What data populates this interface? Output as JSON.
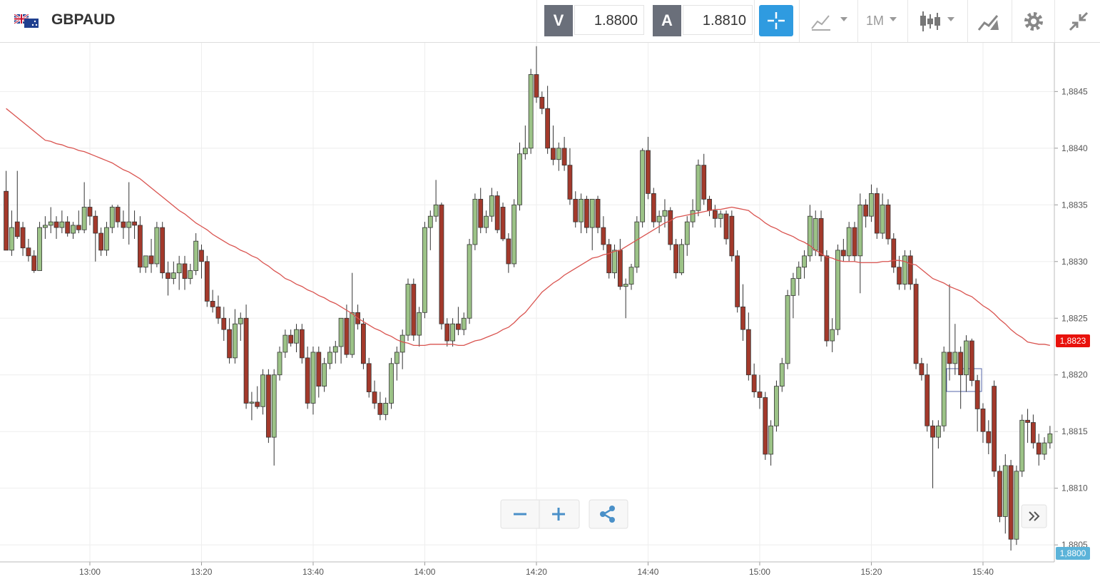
{
  "header": {
    "symbol": "GBPAUD",
    "sell_label": "V",
    "sell_price": "1.8800",
    "buy_label": "A",
    "buy_price": "1.8810",
    "timeframe": "1M"
  },
  "chart_data": {
    "type": "candlestick",
    "categories": [
      null,
      null,
      null,
      null,
      null,
      null,
      null,
      null,
      null,
      null,
      null,
      null,
      null,
      null,
      null,
      "13:00",
      null,
      null,
      null,
      null,
      null,
      null,
      null,
      null,
      null,
      null,
      null,
      null,
      null,
      null,
      null,
      null,
      null,
      null,
      null,
      "13:20",
      null,
      null,
      null,
      null,
      null,
      null,
      null,
      null,
      null,
      null,
      null,
      null,
      null,
      null,
      null,
      null,
      null,
      null,
      null,
      "13:40",
      null,
      null,
      null,
      null,
      null,
      null,
      null,
      null,
      null,
      null,
      null,
      null,
      null,
      null,
      null,
      null,
      null,
      null,
      null,
      "14:00",
      null,
      null,
      null,
      null,
      null,
      null,
      null,
      null,
      null,
      null,
      null,
      null,
      null,
      null,
      null,
      null,
      null,
      null,
      null,
      "14:20",
      null,
      null,
      null,
      null,
      null,
      null,
      null,
      null,
      null,
      null,
      null,
      null,
      null,
      null,
      null,
      null,
      null,
      null,
      null,
      "14:40",
      null,
      null,
      null,
      null,
      null,
      null,
      null,
      null,
      null,
      null,
      null,
      null,
      null,
      null,
      null,
      null,
      null,
      null,
      null,
      "15:00",
      null,
      null,
      null,
      null,
      null,
      null,
      null,
      null,
      null,
      null,
      null,
      null,
      null,
      null,
      null,
      null,
      null,
      null,
      null,
      "15:20",
      null,
      null,
      null,
      null,
      null,
      null,
      null,
      null,
      null,
      null,
      null,
      null,
      null,
      null,
      null,
      null,
      null,
      null,
      null,
      "15:40",
      null,
      null,
      null,
      null,
      null,
      null,
      null,
      null,
      null,
      null,
      null,
      null
    ],
    "open": [
      1.88362,
      1.8831,
      1.88335,
      1.8833,
      1.88312,
      1.88305,
      1.88292,
      1.8833,
      1.88332,
      1.88335,
      1.8833,
      1.88335,
      1.88325,
      1.88332,
      1.88328,
      1.88348,
      1.8834,
      1.88325,
      1.8831,
      1.8833,
      1.88348,
      1.88335,
      1.8833,
      1.88335,
      1.88332,
      1.88295,
      1.88305,
      1.88298,
      1.8833,
      1.8829,
      1.88285,
      1.8829,
      1.88298,
      1.88285,
      1.88292,
      1.8831,
      1.883,
      1.88265,
      1.8826,
      1.8825,
      1.8824,
      1.88215,
      1.88245,
      1.8825,
      1.88175,
      1.88176,
      1.88172,
      1.882,
      1.88145,
      1.882,
      1.8822,
      1.88235,
      1.88228,
      1.8824,
      1.88215,
      1.88175,
      1.8822,
      1.8819,
      1.8821,
      1.8822,
      1.88225,
      1.8825,
      1.88218,
      1.88255,
      1.88245,
      1.8821,
      1.88185,
      1.88175,
      1.88165,
      1.88175,
      1.8821,
      1.8822,
      1.88235,
      1.8828,
      1.88235,
      1.88255,
      1.8833,
      1.8834,
      1.8835,
      1.88245,
      1.8823,
      1.88245,
      1.8824,
      1.8825,
      1.88315,
      1.88355,
      1.8833,
      1.8834,
      1.88358,
      1.88348,
      1.8832,
      1.88298,
      1.8835,
      1.88395,
      1.884,
      1.88465,
      1.88445,
      1.88435,
      1.884,
      1.8839,
      1.884,
      1.88385,
      1.88355,
      1.88335,
      1.88355,
      1.8833,
      1.88355,
      1.8833,
      1.88315,
      1.8829,
      1.8831,
      1.88278,
      1.8828,
      1.88295,
      1.88335,
      1.88398,
      1.8836,
      1.88335,
      1.8834,
      1.88345,
      1.88315,
      1.8829,
      1.88315,
      1.88335,
      1.88345,
      1.88385,
      1.88355,
      1.88345,
      1.88338,
      1.88342,
      1.8834,
      1.88305,
      1.8826,
      1.8824,
      1.882,
      1.88185,
      1.8818,
      1.8813,
      1.88155,
      1.8819,
      1.8821,
      1.8827,
      1.88285,
      1.88295,
      1.88305,
      1.8831,
      1.88338,
      1.88305,
      1.8823,
      1.8824,
      1.8831,
      1.88305,
      1.8833,
      1.88305,
      1.8835,
      1.8834,
      1.8836,
      1.88325,
      1.8835,
      1.8832,
      1.88295,
      1.8828,
      1.88305,
      1.8828,
      1.8821,
      1.882,
      1.88155,
      1.88145,
      1.88155,
      1.8822,
      1.8821,
      1.8822,
      1.882,
      1.8823,
      1.88195,
      1.8817,
      1.8815,
      1.8819,
      1.88115,
      1.88075,
      1.8812,
      1.88055,
      1.88115,
      1.8816,
      1.88158,
      1.8814,
      1.8813,
      1.8814
    ],
    "high": [
      1.8838,
      1.88345,
      1.8838,
      1.88335,
      1.8832,
      1.8831,
      1.88335,
      1.8834,
      1.88348,
      1.8834,
      1.88345,
      1.8834,
      1.88335,
      1.88345,
      1.8837,
      1.88355,
      1.88345,
      1.8833,
      1.88335,
      1.8835,
      1.8835,
      1.88345,
      1.8837,
      1.88345,
      1.8834,
      1.88305,
      1.8832,
      1.88335,
      1.88335,
      1.883,
      1.883,
      1.88305,
      1.88305,
      1.88298,
      1.88325,
      1.88315,
      1.88305,
      1.88275,
      1.8827,
      1.8826,
      1.8825,
      1.88258,
      1.88255,
      1.88262,
      1.88185,
      1.8819,
      1.88205,
      1.88205,
      1.88205,
      1.88225,
      1.8824,
      1.8824,
      1.88245,
      1.88245,
      1.88225,
      1.88225,
      1.88225,
      1.88215,
      1.88225,
      1.8823,
      1.8825,
      1.88262,
      1.8829,
      1.88262,
      1.8825,
      1.88215,
      1.88195,
      1.88185,
      1.8818,
      1.88215,
      1.88225,
      1.8824,
      1.88285,
      1.88285,
      1.8826,
      1.88335,
      1.88345,
      1.88372,
      1.88352,
      1.8825,
      1.8825,
      1.8826,
      1.88255,
      1.8832,
      1.8836,
      1.88365,
      1.88345,
      1.88365,
      1.88362,
      1.88352,
      1.88325,
      1.88355,
      1.88405,
      1.8842,
      1.8847,
      1.8849,
      1.8845,
      1.88455,
      1.8842,
      1.88405,
      1.8841,
      1.884,
      1.88362,
      1.8836,
      1.88358,
      1.88355,
      1.88358,
      1.8834,
      1.8832,
      1.88315,
      1.8832,
      1.88285,
      1.88298,
      1.8834,
      1.884,
      1.8841,
      1.88365,
      1.88345,
      1.88355,
      1.88348,
      1.8832,
      1.8832,
      1.8834,
      1.88355,
      1.8839,
      1.88395,
      1.88358,
      1.8835,
      1.88345,
      1.88345,
      1.88345,
      1.8831,
      1.8828,
      1.88255,
      1.8821,
      1.882,
      1.88185,
      1.8816,
      1.88195,
      1.88215,
      1.88275,
      1.8829,
      1.883,
      1.8831,
      1.8835,
      1.88345,
      1.88345,
      1.8831,
      1.8825,
      1.88315,
      1.8832,
      1.88335,
      1.88335,
      1.8836,
      1.88355,
      1.88368,
      1.88365,
      1.8836,
      1.88355,
      1.88325,
      1.88305,
      1.8831,
      1.8831,
      1.88285,
      1.88215,
      1.8821,
      1.8816,
      1.8816,
      1.88225,
      1.8828,
      1.88245,
      1.88225,
      1.88235,
      1.88232,
      1.882,
      1.88175,
      1.8816,
      1.88195,
      1.8812,
      1.8813,
      1.88125,
      1.8812,
      1.88165,
      1.8817,
      1.88165,
      1.88148,
      1.88145,
      1.88155
    ],
    "low": [
      1.8831,
      1.88305,
      1.8832,
      1.88305,
      1.883,
      1.8829,
      1.88292,
      1.8832,
      1.88325,
      1.8832,
      1.88325,
      1.88322,
      1.8832,
      1.88325,
      1.88325,
      1.88332,
      1.883,
      1.88305,
      1.88305,
      1.88325,
      1.8833,
      1.8832,
      1.88315,
      1.8832,
      1.8829,
      1.8829,
      1.8829,
      1.88295,
      1.88285,
      1.8827,
      1.8828,
      1.88275,
      1.88275,
      1.8828,
      1.88288,
      1.88285,
      1.8826,
      1.88255,
      1.88245,
      1.8823,
      1.8821,
      1.8821,
      1.8823,
      1.8817,
      1.8816,
      1.8817,
      1.88165,
      1.8814,
      1.8812,
      1.88195,
      1.88215,
      1.88225,
      1.8822,
      1.8821,
      1.8817,
      1.88165,
      1.8818,
      1.88185,
      1.88205,
      1.8821,
      1.8821,
      1.88215,
      1.88215,
      1.8824,
      1.88205,
      1.8818,
      1.8817,
      1.8816,
      1.8816,
      1.8817,
      1.88195,
      1.88205,
      1.8823,
      1.8823,
      1.88225,
      1.8825,
      1.8831,
      1.88335,
      1.8824,
      1.88225,
      1.88225,
      1.88235,
      1.88235,
      1.88245,
      1.8831,
      1.88325,
      1.88325,
      1.88335,
      1.88325,
      1.88318,
      1.8829,
      1.88295,
      1.88345,
      1.8839,
      1.88395,
      1.8844,
      1.8843,
      1.88395,
      1.88385,
      1.8838,
      1.8838,
      1.8835,
      1.8833,
      1.88325,
      1.88325,
      1.8831,
      1.88325,
      1.8831,
      1.88285,
      1.88285,
      1.88275,
      1.8825,
      1.88275,
      1.8829,
      1.8833,
      1.88355,
      1.8833,
      1.88325,
      1.8833,
      1.8831,
      1.88285,
      1.88288,
      1.88305,
      1.8833,
      1.8834,
      1.8835,
      1.8834,
      1.8833,
      1.8833,
      1.88315,
      1.883,
      1.88255,
      1.8823,
      1.88195,
      1.8818,
      1.8817,
      1.88125,
      1.8812,
      1.8815,
      1.88185,
      1.88205,
      1.8825,
      1.8827,
      1.88285,
      1.883,
      1.88305,
      1.883,
      1.88225,
      1.8822,
      1.88235,
      1.883,
      1.883,
      1.883,
      1.88272,
      1.8833,
      1.88335,
      1.8832,
      1.8832,
      1.88315,
      1.8829,
      1.88275,
      1.88275,
      1.88275,
      1.88205,
      1.88195,
      1.8815,
      1.881,
      1.88135,
      1.8815,
      1.88195,
      1.882,
      1.8817,
      1.88185,
      1.8819,
      1.8815,
      1.8814,
      1.8813,
      1.8811,
      1.8807,
      1.8806,
      1.88045,
      1.8805,
      1.8811,
      1.8814,
      1.88135,
      1.8812,
      1.88125,
      1.88135
    ],
    "close": [
      1.8831,
      1.8833,
      1.88322,
      1.88312,
      1.88305,
      1.88292,
      1.8833,
      1.88332,
      1.88335,
      1.8833,
      1.88335,
      1.88325,
      1.88332,
      1.88328,
      1.88348,
      1.8834,
      1.88325,
      1.8831,
      1.8833,
      1.88348,
      1.88335,
      1.8833,
      1.88335,
      1.88332,
      1.88295,
      1.88305,
      1.88298,
      1.8833,
      1.8829,
      1.88285,
      1.8829,
      1.88298,
      1.88285,
      1.88292,
      1.88318,
      1.883,
      1.88265,
      1.8826,
      1.8825,
      1.8824,
      1.88215,
      1.88245,
      1.8825,
      1.88175,
      1.88176,
      1.88172,
      1.882,
      1.88145,
      1.882,
      1.8822,
      1.88235,
      1.88228,
      1.8824,
      1.88215,
      1.88175,
      1.8822,
      1.8819,
      1.8821,
      1.8822,
      1.88225,
      1.8825,
      1.88218,
      1.88255,
      1.88245,
      1.8821,
      1.88185,
      1.88175,
      1.88165,
      1.88175,
      1.8821,
      1.8822,
      1.88235,
      1.8828,
      1.88235,
      1.88255,
      1.8833,
      1.8834,
      1.8835,
      1.88245,
      1.8823,
      1.88245,
      1.8824,
      1.8825,
      1.88315,
      1.88355,
      1.8833,
      1.8834,
      1.88358,
      1.88328,
      1.8832,
      1.88298,
      1.8835,
      1.88395,
      1.884,
      1.88465,
      1.88445,
      1.88435,
      1.884,
      1.8839,
      1.884,
      1.88385,
      1.88355,
      1.88335,
      1.88355,
      1.8833,
      1.88355,
      1.8833,
      1.88315,
      1.8829,
      1.8831,
      1.88278,
      1.8828,
      1.88295,
      1.88335,
      1.88398,
      1.8836,
      1.88335,
      1.8834,
      1.88345,
      1.88315,
      1.8829,
      1.88315,
      1.88335,
      1.88345,
      1.88385,
      1.88355,
      1.88345,
      1.88338,
      1.88342,
      1.8832,
      1.88305,
      1.8826,
      1.8824,
      1.882,
      1.88185,
      1.8818,
      1.8813,
      1.88155,
      1.8819,
      1.8821,
      1.8827,
      1.88285,
      1.88295,
      1.88305,
      1.8834,
      1.88338,
      1.88305,
      1.8823,
      1.8824,
      1.8831,
      1.88305,
      1.8833,
      1.88305,
      1.8835,
      1.8834,
      1.8836,
      1.88325,
      1.8835,
      1.8832,
      1.88295,
      1.8828,
      1.88305,
      1.8828,
      1.8821,
      1.882,
      1.88155,
      1.88145,
      1.88155,
      1.8822,
      1.8821,
      1.8822,
      1.882,
      1.8823,
      1.88195,
      1.8817,
      1.8815,
      1.8814,
      1.88115,
      1.88075,
      1.8812,
      1.88055,
      1.88115,
      1.8816,
      1.88158,
      1.8814,
      1.8813,
      1.8814,
      1.88148
    ],
    "up_color": "#9cc387",
    "down_color": "#a3392b",
    "overlay": {
      "type": "line",
      "color": "#d9534f",
      "values": [
        1.88435,
        1.88431,
        1.88427,
        1.88423,
        1.88419,
        1.88415,
        1.88411,
        1.88407,
        1.88406,
        1.88404,
        1.88403,
        1.88401,
        1.884,
        1.88398,
        1.88397,
        1.88395,
        1.88393,
        1.88391,
        1.88389,
        1.88387,
        1.88384,
        1.88381,
        1.88379,
        1.88376,
        1.88373,
        1.88369,
        1.88365,
        1.88361,
        1.88357,
        1.88353,
        1.88349,
        1.88345,
        1.88342,
        1.88338,
        1.88334,
        1.88331,
        1.88328,
        1.88324,
        1.88321,
        1.88318,
        1.88315,
        1.88313,
        1.8831,
        1.88308,
        1.88305,
        1.88303,
        1.88299,
        1.88296,
        1.88292,
        1.88289,
        1.88285,
        1.88283,
        1.8828,
        1.88278,
        1.88275,
        1.88273,
        1.8827,
        1.88268,
        1.88265,
        1.88263,
        1.8826,
        1.88257,
        1.88254,
        1.8825,
        1.88247,
        1.88244,
        1.88241,
        1.88239,
        1.88236,
        1.88234,
        1.88231,
        1.88229,
        1.88228,
        1.88226,
        1.88226,
        1.88226,
        1.88227,
        1.88227,
        1.88227,
        1.88227,
        1.88227,
        1.88226,
        1.88226,
        1.88228,
        1.8823,
        1.88231,
        1.88233,
        1.88235,
        1.88237,
        1.8824,
        1.88242,
        1.88246,
        1.88251,
        1.88255,
        1.88261,
        1.88267,
        1.88273,
        1.88277,
        1.88281,
        1.88284,
        1.88288,
        1.88291,
        1.88294,
        1.88297,
        1.883,
        1.88303,
        1.88304,
        1.88306,
        1.88307,
        1.88309,
        1.8831,
        1.88313,
        1.88316,
        1.88319,
        1.88322,
        1.88325,
        1.88328,
        1.88331,
        1.88334,
        1.88336,
        1.88339,
        1.8834,
        1.88341,
        1.88342,
        1.88343,
        1.88344,
        1.88345,
        1.88346,
        1.88346,
        1.88347,
        1.88348,
        1.88347,
        1.88346,
        1.88345,
        1.88341,
        1.88338,
        1.88334,
        1.88331,
        1.88329,
        1.88326,
        1.88324,
        1.88322,
        1.88319,
        1.88317,
        1.88314,
        1.8831,
        1.88307,
        1.88304,
        1.88303,
        1.88301,
        1.883,
        1.883,
        1.883,
        1.88299,
        1.88299,
        1.88299,
        1.88299,
        1.883,
        1.883,
        1.88301,
        1.88301,
        1.883,
        1.88298,
        1.88297,
        1.88293,
        1.88289,
        1.88285,
        1.88283,
        1.88281,
        1.88278,
        1.88276,
        1.88274,
        1.88271,
        1.88269,
        1.88265,
        1.88261,
        1.88258,
        1.88254,
        1.88249,
        1.88245,
        1.8824,
        1.88236,
        1.88233,
        1.88229,
        1.88228,
        1.88227,
        1.88227,
        1.88226
      ]
    },
    "ylim": [
      1.88035,
      1.88493
    ],
    "yticks": [
      {
        "value": 1.8805,
        "label": "1,8805"
      },
      {
        "value": 1.881,
        "label": "1,8810"
      },
      {
        "value": 1.8815,
        "label": "1,8815"
      },
      {
        "value": 1.882,
        "label": "1,8820"
      },
      {
        "value": 1.8825,
        "label": "1,8825"
      },
      {
        "value": 1.883,
        "label": "1,8830"
      },
      {
        "value": 1.8835,
        "label": "1,8835"
      },
      {
        "value": 1.884,
        "label": "1,8840"
      },
      {
        "value": 1.8845,
        "label": "1,8845"
      }
    ],
    "price_labels": [
      {
        "value": 1.8823,
        "label": "1,8823",
        "color": "#e8120c"
      },
      {
        "value": 1.88,
        "label": "1,8800",
        "color": "#5bb3d9"
      }
    ],
    "grid": true
  }
}
